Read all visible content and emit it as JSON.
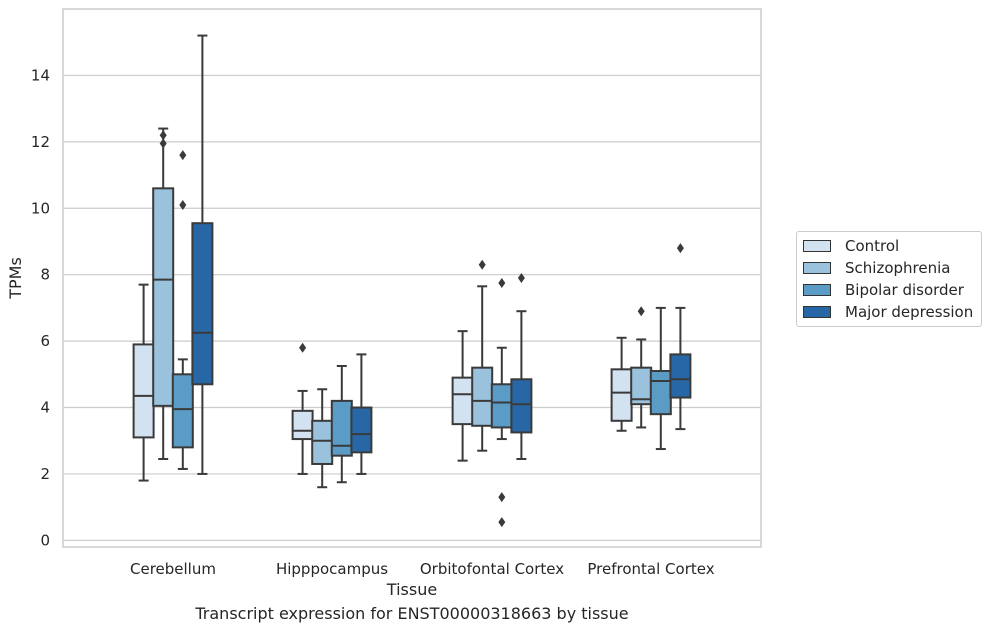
{
  "caption": "Transcript expression for ENST00000318663 by tissue",
  "chart_data": {
    "type": "box",
    "xlabel": "Tissue",
    "ylabel": "TPMs",
    "ylim": [
      -0.2,
      16
    ],
    "yticks": [
      0,
      2,
      4,
      6,
      8,
      10,
      12,
      14
    ],
    "grid": "horizontal",
    "legend_position": "right",
    "categories": [
      "Cerebellum",
      "Hipppocampus",
      "Orbitofontal Cortex",
      "Prefrontal Cortex"
    ],
    "series": [
      {
        "name": "Control",
        "color": "#d3e2f1",
        "boxes": [
          {
            "whislo": 1.8,
            "q1": 3.1,
            "med": 4.35,
            "q3": 5.9,
            "whishi": 7.7,
            "fliers": []
          },
          {
            "whislo": 2.0,
            "q1": 3.05,
            "med": 3.3,
            "q3": 3.9,
            "whishi": 4.5,
            "fliers": [
              5.8
            ]
          },
          {
            "whislo": 2.4,
            "q1": 3.5,
            "med": 4.4,
            "q3": 4.9,
            "whishi": 6.3,
            "fliers": []
          },
          {
            "whislo": 3.3,
            "q1": 3.6,
            "med": 4.45,
            "q3": 5.15,
            "whishi": 6.1,
            "fliers": []
          }
        ]
      },
      {
        "name": "Schizophrenia",
        "color": "#9ac2dd",
        "boxes": [
          {
            "whislo": 2.45,
            "q1": 4.05,
            "med": 7.85,
            "q3": 10.6,
            "whishi": 12.4,
            "fliers": [
              12.2,
              11.95
            ]
          },
          {
            "whislo": 1.6,
            "q1": 2.3,
            "med": 3.0,
            "q3": 3.6,
            "whishi": 4.55,
            "fliers": []
          },
          {
            "whislo": 2.7,
            "q1": 3.45,
            "med": 4.2,
            "q3": 5.2,
            "whishi": 7.65,
            "fliers": [
              8.3
            ]
          },
          {
            "whislo": 3.4,
            "q1": 4.1,
            "med": 4.25,
            "q3": 5.2,
            "whishi": 6.05,
            "fliers": [
              6.9
            ]
          }
        ]
      },
      {
        "name": "Bipolar disorder",
        "color": "#5b9cc7",
        "boxes": [
          {
            "whislo": 2.15,
            "q1": 2.8,
            "med": 3.95,
            "q3": 5.0,
            "whishi": 5.45,
            "fliers": [
              11.6,
              10.1
            ]
          },
          {
            "whislo": 1.75,
            "q1": 2.55,
            "med": 2.85,
            "q3": 4.2,
            "whishi": 5.25,
            "fliers": []
          },
          {
            "whislo": 3.05,
            "q1": 3.4,
            "med": 4.15,
            "q3": 4.7,
            "whishi": 5.8,
            "fliers": [
              7.75,
              1.3,
              0.55
            ]
          },
          {
            "whislo": 2.75,
            "q1": 3.8,
            "med": 4.8,
            "q3": 5.1,
            "whishi": 7.0,
            "fliers": []
          }
        ]
      },
      {
        "name": "Major depression",
        "color": "#2767a6",
        "boxes": [
          {
            "whislo": 2.0,
            "q1": 4.7,
            "med": 6.25,
            "q3": 9.55,
            "whishi": 15.2,
            "fliers": []
          },
          {
            "whislo": 2.0,
            "q1": 2.65,
            "med": 3.2,
            "q3": 4.0,
            "whishi": 5.6,
            "fliers": []
          },
          {
            "whislo": 2.45,
            "q1": 3.25,
            "med": 4.1,
            "q3": 4.85,
            "whishi": 6.9,
            "fliers": [
              7.9
            ]
          },
          {
            "whislo": 3.35,
            "q1": 4.3,
            "med": 4.85,
            "q3": 5.6,
            "whishi": 7.0,
            "fliers": [
              8.8
            ]
          }
        ]
      }
    ]
  }
}
